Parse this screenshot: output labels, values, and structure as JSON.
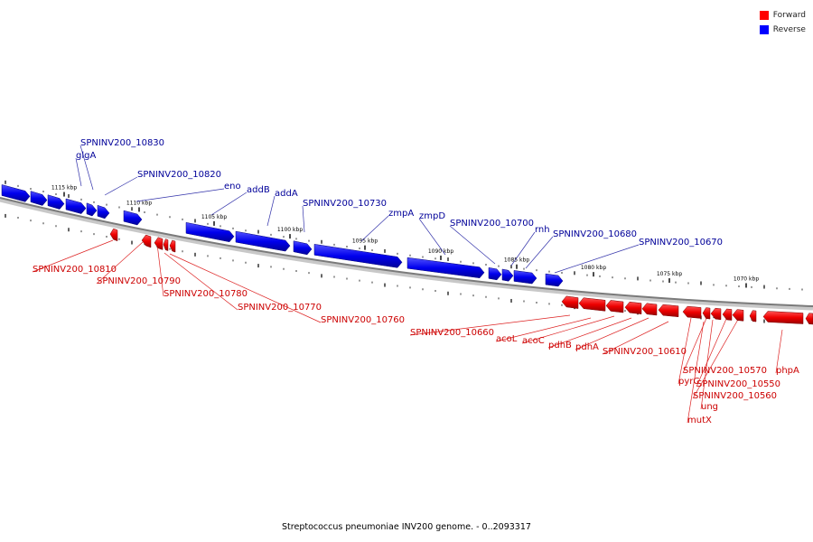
{
  "legend": {
    "forward_label": "Forward",
    "reverse_label": "Reverse",
    "forward_color": "#ff0000",
    "reverse_color": "#0000ff"
  },
  "caption": "Streptococcus pneumoniae INV200 genome. - 0..2093317",
  "ticks": [
    "1115 kbp",
    "1110 kbp",
    "1105 kbp",
    "1100 kbp",
    "1095 kbp",
    "1090 kbp",
    "1085 kbp",
    "1080 kbp",
    "1075 kbp",
    "1070 kbp"
  ],
  "reverse_genes": [
    "SPNINV200_10830",
    "glgA",
    "SPNINV200_10820",
    "eno",
    "addB",
    "addA",
    "SPNINV200_10730",
    "zmpA",
    "zmpD",
    "SPNINV200_10700",
    "rnh",
    "SPNINV200_10680",
    "SPNINV200_10670"
  ],
  "forward_genes": [
    "SPNINV200_10810",
    "SPNINV200_10790",
    "SPNINV200_10780",
    "SPNINV200_10770",
    "SPNINV200_10760",
    "SPNINV200_10660",
    "acoL",
    "acoC",
    "pdhB",
    "pdhA",
    "SPNINV200_10610",
    "pyrC",
    "SPNINV200_10570",
    "SPNINV200_10550",
    "ung",
    "SPNINV200_10560",
    "mutX",
    "phpA"
  ]
}
